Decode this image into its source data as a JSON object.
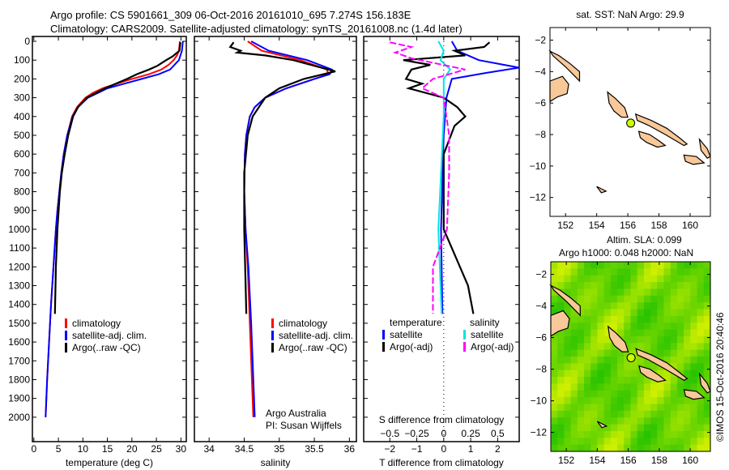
{
  "title": {
    "line1": "Argo profile: CS 5901661_309 06-Oct-2016 20161010_695 7.274S 156.183E",
    "line2": "Climatology: CARS2009. Satellite-adjusted climatology: synTS_20161008.nc (1.4d later)"
  },
  "stamp": "©IMOS 15-Oct-2016 20:40:46",
  "colors": {
    "clim": "#ff0000",
    "sat": "#0000ff",
    "argo": "#000000",
    "cyan": "#00e5e5",
    "magenta": "#ff00ff",
    "land": "#f8c898",
    "float": "#ccff00"
  },
  "chart_data": [
    {
      "type": "line",
      "id": "temperature",
      "xlabel": "temperature (deg C)",
      "ylabel": "",
      "xlim": [
        -0.3,
        31.1
      ],
      "ylim": [
        2130,
        0
      ],
      "xticks": [
        0,
        5,
        10,
        15,
        20,
        25,
        30
      ],
      "yticks": [
        0,
        100,
        200,
        300,
        400,
        500,
        600,
        700,
        800,
        900,
        1000,
        1100,
        1200,
        1300,
        1400,
        1500,
        1600,
        1700,
        1800,
        1900,
        2000
      ],
      "legend": [
        "climatology",
        "satellite-adj. clim.",
        "Argo(..raw -QC)"
      ],
      "series": [
        {
          "name": "climatology",
          "color": "clim",
          "points": [
            [
              0,
              29.8
            ],
            [
              50,
              29.6
            ],
            [
              75,
              29.2
            ],
            [
              100,
              28.5
            ],
            [
              125,
              27.5
            ],
            [
              150,
              26
            ],
            [
              175,
              23.5
            ],
            [
              200,
              20
            ],
            [
              225,
              17
            ],
            [
              250,
              14
            ],
            [
              275,
              12
            ],
            [
              300,
              10.5
            ],
            [
              350,
              8.8
            ],
            [
              400,
              7.8
            ],
            [
              500,
              6.8
            ],
            [
              600,
              6.1
            ],
            [
              700,
              5.6
            ],
            [
              800,
              5.2
            ],
            [
              900,
              4.8
            ],
            [
              1000,
              4.5
            ],
            [
              1200,
              4.0
            ],
            [
              1400,
              3.5
            ],
            [
              1600,
              3.1
            ],
            [
              1800,
              2.7
            ],
            [
              2000,
              2.4
            ]
          ]
        },
        {
          "name": "satellite-adj. clim.",
          "color": "sat",
          "points": [
            [
              0,
              30.4
            ],
            [
              50,
              30.2
            ],
            [
              100,
              29.6
            ],
            [
              150,
              27.8
            ],
            [
              175,
              25.5
            ],
            [
              200,
              22
            ],
            [
              225,
              18.5
            ],
            [
              250,
              15
            ],
            [
              300,
              11
            ],
            [
              350,
              9
            ],
            [
              400,
              7.9
            ],
            [
              500,
              6.8
            ],
            [
              600,
              6.1
            ],
            [
              700,
              5.6
            ],
            [
              800,
              5.2
            ],
            [
              900,
              4.8
            ],
            [
              1000,
              4.5
            ],
            [
              1200,
              4.0
            ],
            [
              1400,
              3.5
            ],
            [
              1600,
              3.1
            ],
            [
              1800,
              2.7
            ],
            [
              2000,
              2.4
            ]
          ]
        },
        {
          "name": "Argo(..raw -QC)",
          "color": "argo",
          "points": [
            [
              5,
              29.9
            ],
            [
              50,
              29.7
            ],
            [
              80,
              28.3
            ],
            [
              100,
              27
            ],
            [
              130,
              25.2
            ],
            [
              150,
              23.5
            ],
            [
              175,
              21
            ],
            [
              200,
              19
            ],
            [
              250,
              14.5
            ],
            [
              300,
              10.8
            ],
            [
              350,
              9
            ],
            [
              400,
              8
            ],
            [
              500,
              7
            ],
            [
              600,
              6.3
            ],
            [
              700,
              5.7
            ],
            [
              800,
              5.3
            ],
            [
              1000,
              4.8
            ],
            [
              1200,
              4.5
            ],
            [
              1450,
              4.3
            ]
          ]
        }
      ]
    },
    {
      "type": "line",
      "id": "salinity",
      "xlabel": "salinity",
      "xlim": [
        33.79,
        36.1
      ],
      "ylim": [
        2130,
        0
      ],
      "xticks": [
        34,
        34.5,
        35,
        35.5,
        36
      ],
      "legend": [
        "climatology",
        "satellite-adj. clim.",
        "Argo(..raw -QC)"
      ],
      "annotation": [
        "Argo Australia",
        "PI: Susan Wijffels"
      ],
      "series": [
        {
          "name": "climatology",
          "color": "clim",
          "points": [
            [
              0,
              34.55
            ],
            [
              50,
              34.75
            ],
            [
              100,
              35.3
            ],
            [
              150,
              35.68
            ],
            [
              175,
              35.7
            ],
            [
              200,
              35.5
            ],
            [
              250,
              35.1
            ],
            [
              300,
              34.8
            ],
            [
              350,
              34.65
            ],
            [
              400,
              34.58
            ],
            [
              500,
              34.53
            ],
            [
              600,
              34.51
            ],
            [
              800,
              34.5
            ],
            [
              1000,
              34.52
            ],
            [
              1200,
              34.55
            ],
            [
              1500,
              34.58
            ],
            [
              2000,
              34.63
            ]
          ]
        },
        {
          "name": "satellite-adj. clim.",
          "color": "sat",
          "points": [
            [
              0,
              34.6
            ],
            [
              50,
              34.85
            ],
            [
              100,
              35.4
            ],
            [
              150,
              35.75
            ],
            [
              175,
              35.72
            ],
            [
              200,
              35.5
            ],
            [
              250,
              35.1
            ],
            [
              300,
              34.8
            ],
            [
              350,
              34.65
            ],
            [
              400,
              34.58
            ],
            [
              500,
              34.53
            ],
            [
              600,
              34.51
            ],
            [
              800,
              34.5
            ],
            [
              1000,
              34.52
            ],
            [
              1200,
              34.56
            ],
            [
              1500,
              34.6
            ],
            [
              2000,
              34.65
            ]
          ]
        },
        {
          "name": "Argo(..raw -QC)",
          "color": "argo",
          "points": [
            [
              5,
              34.35
            ],
            [
              30,
              34.3
            ],
            [
              50,
              34.45
            ],
            [
              60,
              34.4
            ],
            [
              75,
              34.8
            ],
            [
              100,
              35.2
            ],
            [
              130,
              35.5
            ],
            [
              160,
              35.8
            ],
            [
              200,
              35.35
            ],
            [
              250,
              35.0
            ],
            [
              300,
              34.8
            ],
            [
              400,
              34.62
            ],
            [
              500,
              34.55
            ],
            [
              700,
              34.5
            ],
            [
              1000,
              34.5
            ],
            [
              1450,
              34.53
            ]
          ]
        }
      ]
    },
    {
      "type": "line",
      "id": "difference",
      "xlabel": "T difference from climatology",
      "x2label": "S difference from climatology",
      "xlim": [
        -2.97,
        2.8
      ],
      "ylim": [
        2130,
        0
      ],
      "xticks": [
        -2,
        -1,
        0,
        1,
        2
      ],
      "x2ticks": [
        -0.5,
        -0.25,
        0,
        0.25,
        0.5
      ],
      "s_scale": 4,
      "legend": {
        "temperature": "temperature",
        "salinity": "salinity",
        "t_sat": "satellite",
        "t_argo": "Argo(-adj)",
        "s_sat": "satellite",
        "s_argo": "Argo(-adj)"
      },
      "series": [
        {
          "name": "T satellite",
          "color": "sat",
          "kind": "T",
          "points": [
            [
              0,
              0.3
            ],
            [
              50,
              0.5
            ],
            [
              100,
              1.3
            ],
            [
              140,
              2.8
            ],
            [
              170,
              1.5
            ],
            [
              200,
              0.3
            ],
            [
              300,
              0.1
            ],
            [
              500,
              0
            ],
            [
              1000,
              -0.1
            ],
            [
              1450,
              -0.05
            ]
          ]
        },
        {
          "name": "T Argo(-adj)",
          "color": "argo",
          "kind": "T",
          "points": [
            [
              5,
              1.7
            ],
            [
              30,
              1.5
            ],
            [
              50,
              0.4
            ],
            [
              75,
              0.8
            ],
            [
              100,
              -1.5
            ],
            [
              125,
              -0.5
            ],
            [
              150,
              -1.2
            ],
            [
              200,
              -1.4
            ],
            [
              225,
              -0.8
            ],
            [
              250,
              -1.3
            ],
            [
              300,
              0
            ],
            [
              350,
              0.5
            ],
            [
              400,
              0.8
            ],
            [
              450,
              0.4
            ],
            [
              600,
              0
            ],
            [
              1000,
              0
            ],
            [
              1100,
              0.3
            ],
            [
              1300,
              0.9
            ],
            [
              1450,
              1.1
            ]
          ]
        },
        {
          "name": "S satellite",
          "color": "cyan",
          "kind": "S",
          "points": [
            [
              0,
              -0.05
            ],
            [
              50,
              0
            ],
            [
              100,
              -0.03
            ],
            [
              150,
              0.06
            ],
            [
              200,
              0
            ],
            [
              400,
              0
            ],
            [
              1000,
              -0.05
            ],
            [
              1450,
              -0.02
            ]
          ]
        },
        {
          "name": "S Argo(-adj)",
          "color": "magenta",
          "kind": "S",
          "points": [
            [
              5,
              -0.5
            ],
            [
              30,
              -0.3
            ],
            [
              60,
              -0.45
            ],
            [
              90,
              -0.3
            ],
            [
              150,
              0.2
            ],
            [
              200,
              -0.1
            ],
            [
              250,
              -0.2
            ],
            [
              300,
              0
            ],
            [
              500,
              0.05
            ],
            [
              700,
              0.05
            ],
            [
              1000,
              0.03
            ],
            [
              1200,
              -0.1
            ],
            [
              1450,
              -0.1
            ]
          ]
        }
      ]
    },
    {
      "type": "map",
      "id": "sst-map",
      "title": "sat. SST: NaN Argo: 29.9",
      "xlim": [
        151.0,
        161.3
      ],
      "ylim": [
        -13.2,
        -1.2
      ],
      "xticks": [
        152,
        154,
        156,
        158,
        160
      ],
      "yticks": [
        -2,
        -4,
        -6,
        -8,
        -10,
        -12
      ],
      "float": [
        156.183,
        -7.274
      ]
    },
    {
      "type": "map",
      "id": "sla-map",
      "title": "Altim. SLA: 0.099",
      "subtitle": "Argo h1000: 0.048 h2000: NaN",
      "xlim": [
        151.0,
        161.3
      ],
      "ylim": [
        -13.2,
        -1.2
      ],
      "xticks": [
        152,
        154,
        156,
        158,
        160
      ],
      "yticks": [
        -2,
        -4,
        -6,
        -8,
        -10,
        -12
      ],
      "float": [
        156.183,
        -7.274
      ]
    }
  ]
}
